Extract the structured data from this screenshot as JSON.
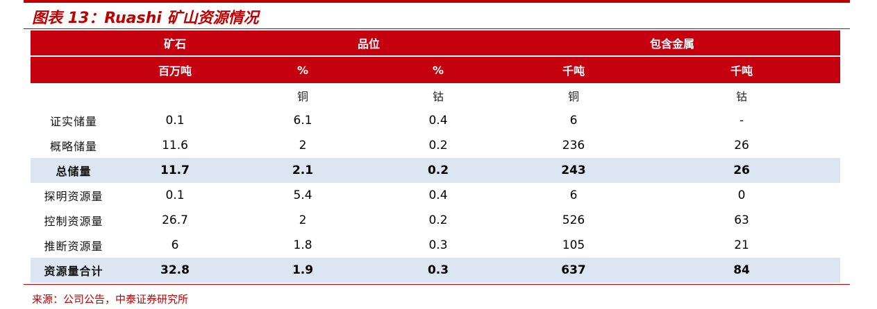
{
  "title": "图表 13：Ruashi 矿山资源情况",
  "header_row1": [
    "",
    "矿石",
    "品位",
    "包含金属"
  ],
  "header_row2": [
    "",
    "百万吨",
    "%",
    "%",
    "千吨",
    "千吨"
  ],
  "sub_row": [
    "",
    "",
    "铜",
    "钴",
    "铜",
    "钴"
  ],
  "rows": [
    {
      "label": "证实储量",
      "values": [
        "0.1",
        "6.1",
        "0.4",
        "6",
        "-"
      ],
      "bold": false
    },
    {
      "label": "概略储量",
      "values": [
        "11.6",
        "2",
        "0.2",
        "236",
        "26"
      ],
      "bold": false
    },
    {
      "label": "总储量",
      "values": [
        "11.7",
        "2.1",
        "0.2",
        "243",
        "26"
      ],
      "bold": true
    },
    {
      "label": "探明资源量",
      "values": [
        "0.1",
        "5.4",
        "0.4",
        "6",
        "0"
      ],
      "bold": false
    },
    {
      "label": "控制资源量",
      "values": [
        "26.7",
        "2",
        "0.2",
        "526",
        "63"
      ],
      "bold": false
    },
    {
      "label": "推断资源量",
      "values": [
        "6",
        "1.8",
        "0.3",
        "105",
        "21"
      ],
      "bold": false
    },
    {
      "label": "资源量合计",
      "values": [
        "32.8",
        "1.9",
        "0.3",
        "637",
        "84"
      ],
      "bold": true
    }
  ],
  "source": "来源：公司公告，中泰证券研究所"
}
